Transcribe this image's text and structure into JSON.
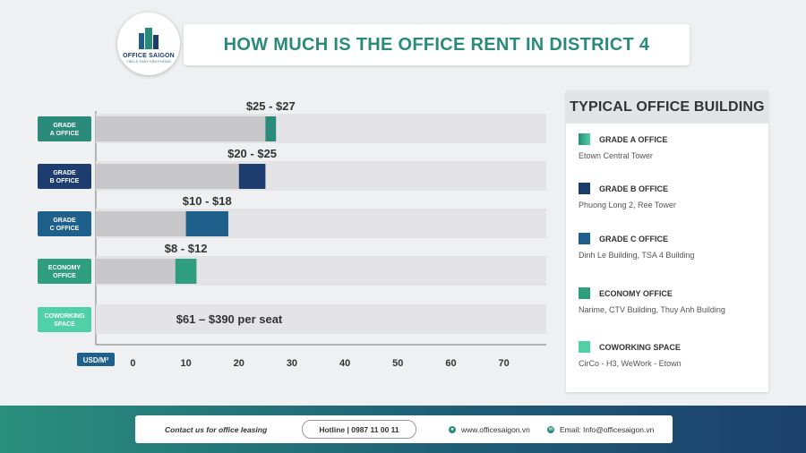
{
  "header": {
    "title": "HOW MUCH IS THE OFFICE RENT IN DISTRICT 4",
    "logo_text": "OFFICE SAIGON",
    "logo_sub": "TÌM LÀ THẤY VĂN PHÒNG"
  },
  "chart_data": {
    "type": "bar",
    "orientation": "horizontal",
    "title": "HOW MUCH IS THE OFFICE RENT IN DISTRICT 4",
    "categories": [
      "GRADE\nA OFFICE",
      "GRADE\nB OFFICE",
      "GRADE\nC OFFICE",
      "ECONOMY\nOFFICE",
      "COWORKING\nSPACE"
    ],
    "ranges": [
      [
        25,
        27
      ],
      [
        20,
        25
      ],
      [
        10,
        18
      ],
      [
        8,
        12
      ],
      null
    ],
    "value_labels": [
      "$25 - $27",
      "$20 - $25",
      "$10 - $18",
      "$8 - $12",
      "$61 – $390 per seat"
    ],
    "colors": [
      "#2a8b7a",
      "#1d3d6f",
      "#1f5f8b",
      "#2e9e7f",
      "#4fd0a6"
    ],
    "x_unit_label": "USD/M²",
    "x_ticks": [
      0,
      10,
      20,
      30,
      40,
      50,
      60,
      70
    ],
    "xlim": [
      -7,
      78
    ]
  },
  "legend": {
    "title": "TYPICAL OFFICE BUILDING",
    "items": [
      {
        "label": "GRADE A OFFICE",
        "desc": "Etown Central Tower",
        "color": "#2a8b7a"
      },
      {
        "label": "GRADE B OFFICE",
        "desc": "Phuong Long 2, Ree Tower",
        "color": "#1d3d6f"
      },
      {
        "label": "GRADE C OFFICE",
        "desc": "Dinh Le Building, TSA 4 Building",
        "color": "#1f5f8b"
      },
      {
        "label": "ECONOMY OFFICE",
        "desc": "Narime, CTV Building, Thuy Anh Building",
        "color": "#2e9e7f"
      },
      {
        "label": "COWORKING SPACE",
        "desc": "CirCo - H3, WeWork - Etown",
        "color": "#4fd0a6"
      }
    ]
  },
  "footer": {
    "contact": "Contact us for office leasing",
    "hotline": "Hotline | 0987 11 00 11",
    "website": "www.officesaigon.vn",
    "email": "Email: Info@officesaigon.vn"
  }
}
